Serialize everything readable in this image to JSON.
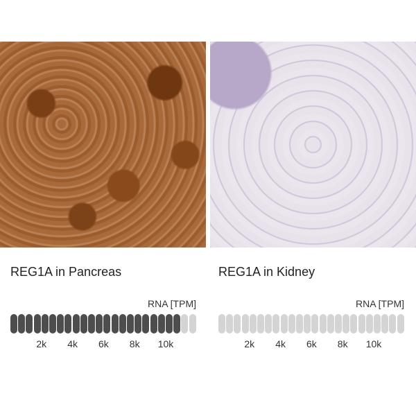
{
  "panels": [
    {
      "title": "REG1A in Pancreas",
      "image": "pancreas tissue IHC",
      "rna_label": "RNA [TPM]",
      "segments_total": 24,
      "segments_filled": 22,
      "fill_color": "#4d4d4d",
      "empty_color": "#d4d4d4",
      "ticks": [
        "2k",
        "4k",
        "6k",
        "8k",
        "10k"
      ]
    },
    {
      "title": "REG1A in Kidney",
      "image": "kidney tissue IHC",
      "rna_label": "RNA [TPM]",
      "segments_total": 24,
      "segments_filled": 0,
      "fill_color": "#4d4d4d",
      "empty_color": "#d4d4d4",
      "ticks": [
        "2k",
        "4k",
        "6k",
        "8k",
        "10k"
      ]
    }
  ]
}
